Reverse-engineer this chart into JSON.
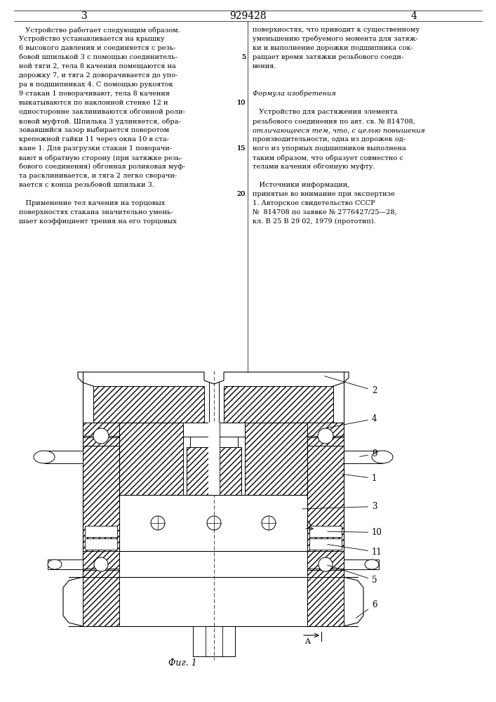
{
  "page_bg": "#ffffff",
  "page_number_left": "3",
  "page_number_center": "929428",
  "page_number_right": "4",
  "left_col_text": [
    "Устройство работает следующим образом.",
    "Устройство устанавливается на крышку",
    "6 высокого давления и соединяется с резь-",
    "бовой шпилькой 3 с помощью соединитель-",
    "ной тяги 2, тела 8 качения помещаются на",
    "дорожку 7, и тяга 2 доворачивается до упо-",
    "ра в подшипниках 4. С помощью рукояток",
    "9 стакан 1 поворачивают, тела 8 качения",
    "выкатываются по наклонной стенке 12 и",
    "односторонне заклиниваются обгонной роли-",
    "ковой муфтой. Шпилька 3 удлиняется, обра-",
    "зовавшийся зазор выбирается поворотом",
    "крепежной гайки 11 через окна 10 в ста-",
    "кане 1. Для разгрузки стакан 1 поворачи-",
    "вают в обратную сторону (при затяжке резь-",
    "бового соединения) обгонная роликовая муф-",
    "та расклинивается, и тяга 2 легко сворачи-",
    "вается с конца резьбовой шпильки 3.",
    "",
    "Применение тел качения на торцовых",
    "поверхностях стакана значительно умень-",
    "шает коэффициент трения на его торцовых"
  ],
  "right_col_text_lines": [
    [
      "поверхностях, что приводит к существенному",
      false
    ],
    [
      "уменьшению требуемого момента для затяж-",
      false
    ],
    [
      "ки и выполнение дорожки подшипника сок-",
      false
    ],
    [
      "ращает время затяжки резьбового соеди-",
      false
    ],
    [
      "нения.",
      false
    ],
    [
      "",
      false
    ],
    [
      "",
      false
    ],
    [
      "Формула изобретения",
      true
    ],
    [
      "",
      false
    ],
    [
      "Устройство для растяжения элемента",
      false
    ],
    [
      "резьбового соединения по авт. св. № 814708,",
      false
    ],
    [
      "отличающееся тем, что, с целью повышения",
      true
    ],
    [
      "производительности, одна из дорожек од-",
      false
    ],
    [
      "ного из упорных подшипников выполнена",
      false
    ],
    [
      "таким образом, что образует совместно с",
      false
    ],
    [
      "телами качения обгонную муфту.",
      false
    ],
    [
      "",
      false
    ],
    [
      "Источники информации,",
      false
    ],
    [
      "принятые во внимание при экспертизе",
      false
    ],
    [
      "1. Авторское свидетельство СССР",
      false
    ],
    [
      "№  814708 по заявке № 2776427/25—28,",
      false
    ],
    [
      "кл. В 25 В 29 02, 1979 (прототип).",
      false
    ]
  ],
  "fig_label": "Фиг. 1"
}
